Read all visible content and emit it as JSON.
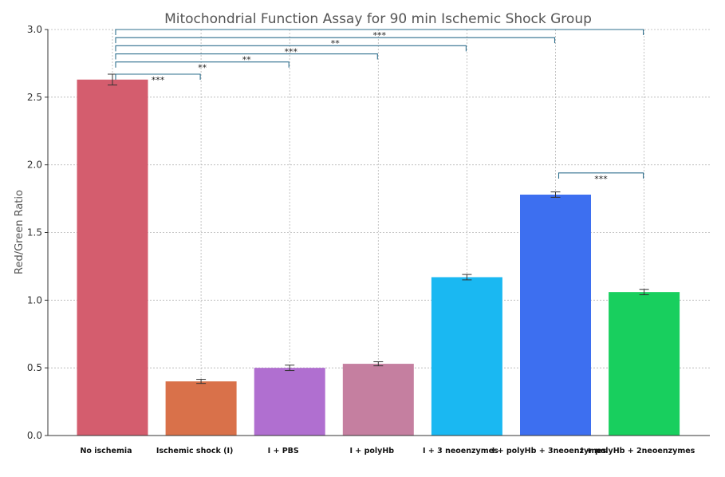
{
  "chart_data": {
    "type": "bar",
    "title": "Mitochondrial Function Assay for 90 min Ischemic Shock Group",
    "xlabel": "",
    "ylabel": "Red/Green Ratio",
    "ylim": [
      0,
      3.0
    ],
    "yticks": [
      0.0,
      0.5,
      1.0,
      1.5,
      2.0,
      2.5,
      3.0
    ],
    "ytick_labels": [
      "0.0",
      "0.5",
      "1.0",
      "1.5",
      "2.0",
      "2.5",
      "3.0"
    ],
    "grid": true,
    "categories": [
      "No ischemia",
      "Ischemic shock (I)",
      "I + PBS",
      "I + polyHb",
      "I + 3 neoenzymes",
      "I + polyHb + 3neoenzymes",
      "I + polyHb + 2neoenzymes"
    ],
    "values": [
      2.63,
      0.4,
      0.5,
      0.53,
      1.17,
      1.78,
      1.06
    ],
    "errors": [
      0.04,
      0.015,
      0.02,
      0.015,
      0.02,
      0.02,
      0.02
    ],
    "colors": [
      "#d45d6e",
      "#d9714a",
      "#b06fd0",
      "#c57fa0",
      "#1ab8f2",
      "#3d6ff0",
      "#18cf5e"
    ],
    "significance": [
      {
        "from": 0,
        "to": 1,
        "label": "***",
        "level": 2.67
      },
      {
        "from": 0,
        "to": 2,
        "label": "**",
        "level": 2.76
      },
      {
        "from": 0,
        "to": 3,
        "label": "**",
        "level": 2.82
      },
      {
        "from": 0,
        "to": 4,
        "label": "***",
        "level": 2.88
      },
      {
        "from": 0,
        "to": 5,
        "label": "**",
        "level": 2.94
      },
      {
        "from": 0,
        "to": 6,
        "label": "***",
        "level": 3.0
      },
      {
        "from": 5,
        "to": 6,
        "label": "***",
        "level": 1.94
      }
    ],
    "bracket_color": "#2e6f8e"
  }
}
